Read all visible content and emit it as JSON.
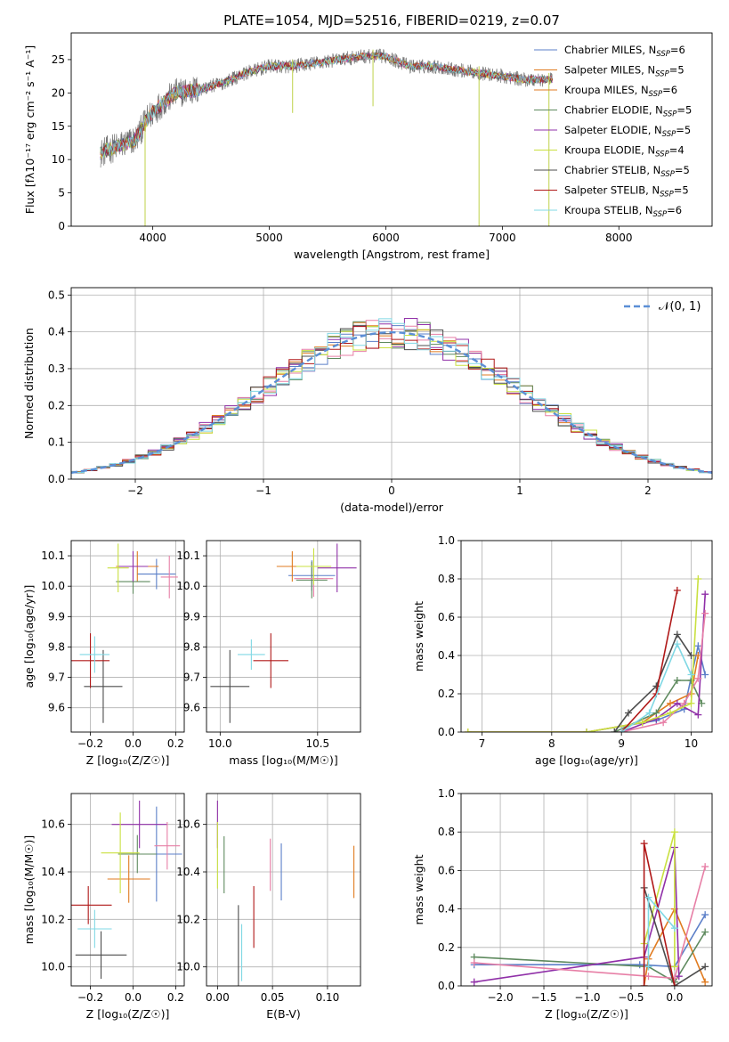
{
  "colors": {
    "series": [
      "#5b7fc8",
      "#e07b20",
      "#5e8a5e",
      "#9030a8",
      "#e77fa6",
      "#c9e040",
      "#4d4d4d",
      "#b01818",
      "#80d8e4"
    ],
    "normal_line": "#5b8fd6",
    "spectrum_grey": "#777777"
  },
  "chart_data": [
    {
      "id": "spectrum",
      "type": "line",
      "title": "PLATE=1054, MJD=52516, FIBERID=0219, z=0.07",
      "xlabel": "wavelength [Angstrom, rest frame]",
      "ylabel": "Flux [fλ10⁻¹⁷ erg cm⁻² s⁻¹ A⁻¹]",
      "xlim": [
        3300,
        8800
      ],
      "ylim": [
        0,
        29
      ],
      "xticks": [
        4000,
        5000,
        6000,
        7000,
        8000
      ],
      "yticks": [
        0,
        5,
        10,
        15,
        20,
        25
      ],
      "continuum": {
        "x": [
          3550,
          3700,
          3850,
          3950,
          4050,
          4200,
          4400,
          4600,
          4800,
          5000,
          5200,
          5400,
          5600,
          5800,
          6000,
          6200,
          6400,
          6600,
          6800,
          7000,
          7200,
          7400
        ],
        "y": [
          11,
          12,
          13,
          16,
          18,
          20,
          20.5,
          21.5,
          23,
          24,
          24,
          24.5,
          25,
          25.5,
          25.5,
          24,
          24,
          23.5,
          23,
          22.5,
          22,
          22
        ]
      },
      "absorption_lines": [
        {
          "x": 3934,
          "y": 0
        },
        {
          "x": 5890,
          "y": 18
        },
        {
          "x": 5200,
          "y": 17
        },
        {
          "x": 6800,
          "y": 0
        },
        {
          "x": 7400,
          "y": 0
        }
      ],
      "legend": [
        "Chabrier MILES, N_SSP=6",
        "Salpeter MILES, N_SSP=5",
        "Kroupa MILES, N_SSP=6",
        "Chabrier ELODIE, N_SSP=5",
        "Salpeter ELODIE, N_SSP=5",
        "Kroupa ELODIE, N_SSP=4",
        "Chabrier STELIB, N_SSP=5",
        "Salpeter STELIB, N_SSP=5",
        "Kroupa STELIB, N_SSP=6"
      ],
      "legend_colors": [
        "#5b7fc8",
        "#e07b20",
        "#e07b20",
        "#5e8a5e",
        "#9030a8",
        "#c9e040",
        "#4d4d4d",
        "#b01818",
        "#80d8e4"
      ],
      "legend_position": "top-right"
    },
    {
      "id": "residuals",
      "type": "area",
      "xlabel": "(data-model)/error",
      "ylabel": "Normed distribution",
      "xlim": [
        -2.5,
        2.5
      ],
      "ylim": [
        0,
        0.52
      ],
      "xticks": [
        -2,
        -1,
        0,
        1,
        2
      ],
      "yticks": [
        0.0,
        0.1,
        0.2,
        0.3,
        0.4,
        0.5
      ],
      "grid": true,
      "bin_width": 0.1,
      "normal_label": "𝒩(0, 1)",
      "legend_position": "top-right"
    },
    {
      "id": "age-vs-Z",
      "type": "scatter",
      "xlabel": "Z [log₁₀(Z/Z☉)]",
      "ylabel": "age  [log₁₀(age/yr)]",
      "xlim": [
        -0.29,
        0.24
      ],
      "ylim": [
        9.52,
        10.15
      ],
      "xticks": [
        -0.2,
        0.0,
        0.2
      ],
      "yticks": [
        9.6,
        9.7,
        9.8,
        9.9,
        10.0,
        10.1
      ],
      "grid": true,
      "points": [
        {
          "x": 0.11,
          "y": 10.04,
          "xerr": 0.09,
          "yerr": 0.05
        },
        {
          "x": 0.02,
          "y": 10.065,
          "xerr": 0.1,
          "yerr": 0.05
        },
        {
          "x": 0.0,
          "y": 10.015,
          "xerr": 0.08,
          "yerr": 0.04
        },
        {
          "x": 0.0,
          "y": 10.065,
          "xerr": 0.07,
          "yerr": 0.05
        },
        {
          "x": 0.17,
          "y": 10.03,
          "xerr": 0.04,
          "yerr": 0.07
        },
        {
          "x": -0.07,
          "y": 10.06,
          "xerr": 0.05,
          "yerr": 0.08
        },
        {
          "x": -0.14,
          "y": 9.67,
          "xerr": 0.09,
          "yerr": 0.12
        },
        {
          "x": -0.2,
          "y": 9.755,
          "xerr": 0.09,
          "yerr": 0.09
        },
        {
          "x": -0.18,
          "y": 9.775,
          "xerr": 0.07,
          "yerr": 0.06
        }
      ]
    },
    {
      "id": "age-vs-mass",
      "type": "scatter",
      "xlabel": "mass [log₁₀(M/M☉)]",
      "ylabel": "",
      "xlim": [
        9.93,
        10.72
      ],
      "ylim": [
        9.52,
        10.15
      ],
      "xticks": [
        10.0,
        10.5
      ],
      "yticks": [
        9.6,
        9.7,
        9.8,
        9.9,
        10.0,
        10.1
      ],
      "grid": true,
      "points": [
        {
          "x": 10.47,
          "y": 10.035,
          "xerr": 0.12,
          "yerr": 0.05
        },
        {
          "x": 10.37,
          "y": 10.065,
          "xerr": 0.08,
          "yerr": 0.05
        },
        {
          "x": 10.47,
          "y": 10.02,
          "xerr": 0.08,
          "yerr": 0.06
        },
        {
          "x": 10.6,
          "y": 10.06,
          "xerr": 0.1,
          "yerr": 0.08
        },
        {
          "x": 10.48,
          "y": 10.025,
          "xerr": 0.1,
          "yerr": 0.06
        },
        {
          "x": 10.48,
          "y": 10.065,
          "xerr": 0.09,
          "yerr": 0.06
        },
        {
          "x": 10.05,
          "y": 9.67,
          "xerr": 0.1,
          "yerr": 0.12
        },
        {
          "x": 10.26,
          "y": 9.755,
          "xerr": 0.09,
          "yerr": 0.09
        },
        {
          "x": 10.16,
          "y": 9.775,
          "xerr": 0.07,
          "yerr": 0.05
        }
      ]
    },
    {
      "id": "massweight-vs-age",
      "type": "line",
      "xlabel": "age  [log₁₀(age/yr)]",
      "ylabel": "mass weight",
      "xlim": [
        6.7,
        10.3
      ],
      "ylim": [
        0,
        1.0
      ],
      "xticks": [
        7,
        8,
        9,
        10
      ],
      "yticks": [
        0.0,
        0.2,
        0.4,
        0.6,
        0.8,
        1.0
      ],
      "grid": true,
      "series": [
        {
          "x": [
            8.5,
            9.5,
            9.9,
            10.1,
            10.2
          ],
          "y": [
            0.0,
            0.06,
            0.12,
            0.45,
            0.3
          ]
        },
        {
          "x": [
            6.8,
            8.5,
            9.3,
            9.7,
            10.0,
            10.1
          ],
          "y": [
            0.0,
            0.0,
            0.05,
            0.15,
            0.2,
            0.4
          ]
        },
        {
          "x": [
            8.9,
            9.5,
            9.8,
            10.0,
            10.15
          ],
          "y": [
            0.0,
            0.1,
            0.27,
            0.27,
            0.15
          ]
        },
        {
          "x": [
            9.0,
            9.5,
            9.8,
            10.1,
            10.2
          ],
          "y": [
            0.0,
            0.07,
            0.15,
            0.09,
            0.72
          ]
        },
        {
          "x": [
            9.0,
            9.6,
            9.9,
            10.1,
            10.2
          ],
          "y": [
            0.0,
            0.05,
            0.15,
            0.28,
            0.62
          ]
        },
        {
          "x": [
            6.8,
            8.5,
            9.3,
            9.7,
            10.0,
            10.1
          ],
          "y": [
            0.0,
            0.0,
            0.05,
            0.1,
            0.15,
            0.8
          ]
        },
        {
          "x": [
            8.9,
            9.1,
            9.5,
            9.8,
            10.0
          ],
          "y": [
            0.0,
            0.1,
            0.24,
            0.51,
            0.4
          ]
        },
        {
          "x": [
            9.0,
            9.5,
            9.8
          ],
          "y": [
            0.0,
            0.2,
            0.74
          ]
        },
        {
          "x": [
            9.0,
            9.4,
            9.8,
            10.0
          ],
          "y": [
            0.0,
            0.1,
            0.46,
            0.3
          ]
        }
      ]
    },
    {
      "id": "mass-vs-Z",
      "type": "scatter",
      "xlabel": "Z [log₁₀(Z/Z☉)]",
      "ylabel": "mass [log₁₀(M/M☉)]",
      "xlim": [
        -0.29,
        0.24
      ],
      "ylim": [
        9.92,
        10.73
      ],
      "xticks": [
        -0.2,
        0.0,
        0.2
      ],
      "yticks": [
        10.0,
        10.2,
        10.4,
        10.6
      ],
      "grid": true,
      "points": [
        {
          "x": 0.11,
          "y": 10.475,
          "xerr": 0.12,
          "yerr": 0.2
        },
        {
          "x": -0.02,
          "y": 10.37,
          "xerr": 0.1,
          "yerr": 0.1
        },
        {
          "x": 0.02,
          "y": 10.475,
          "xerr": 0.09,
          "yerr": 0.08
        },
        {
          "x": 0.03,
          "y": 10.6,
          "xerr": 0.13,
          "yerr": 0.1
        },
        {
          "x": 0.16,
          "y": 10.51,
          "xerr": 0.06,
          "yerr": 0.1
        },
        {
          "x": -0.06,
          "y": 10.48,
          "xerr": 0.09,
          "yerr": 0.17
        },
        {
          "x": -0.15,
          "y": 10.05,
          "xerr": 0.12,
          "yerr": 0.1
        },
        {
          "x": -0.21,
          "y": 10.26,
          "xerr": 0.11,
          "yerr": 0.08
        },
        {
          "x": -0.18,
          "y": 10.16,
          "xerr": 0.08,
          "yerr": 0.08
        }
      ]
    },
    {
      "id": "mass-vs-ebv",
      "type": "scatter",
      "xlabel": "E(B-V)",
      "ylabel": "",
      "xlim": [
        -0.01,
        0.13
      ],
      "ylim": [
        9.92,
        10.73
      ],
      "xticks": [
        0.0,
        0.05,
        0.1
      ],
      "yticks": [
        10.0,
        10.2,
        10.4,
        10.6
      ],
      "grid": true,
      "points": [
        {
          "x": 0.058,
          "y": 10.4,
          "xerr": 0,
          "yerr": 0.12
        },
        {
          "x": 0.124,
          "y": 10.4,
          "xerr": 0,
          "yerr": 0.11
        },
        {
          "x": 0.006,
          "y": 10.43,
          "xerr": 0,
          "yerr": 0.12
        },
        {
          "x": 0.0,
          "y": 10.6,
          "xerr": 0,
          "yerr": 0.1
        },
        {
          "x": 0.048,
          "y": 10.43,
          "xerr": 0,
          "yerr": 0.11
        },
        {
          "x": 0.0,
          "y": 10.47,
          "xerr": 0,
          "yerr": 0.14
        },
        {
          "x": 0.019,
          "y": 10.05,
          "xerr": 0,
          "yerr": 0.21
        },
        {
          "x": 0.033,
          "y": 10.21,
          "xerr": 0,
          "yerr": 0.13
        },
        {
          "x": 0.022,
          "y": 10.06,
          "xerr": 0,
          "yerr": 0.12
        }
      ]
    },
    {
      "id": "massweight-vs-Z",
      "type": "line",
      "xlabel": "Z [log₁₀(Z/Z☉)]",
      "ylabel": "mass weight",
      "xlim": [
        -2.45,
        0.43
      ],
      "ylim": [
        0,
        1.0
      ],
      "xticks": [
        -2.0,
        -1.5,
        -1.0,
        -0.5,
        0.0
      ],
      "yticks": [
        0.0,
        0.2,
        0.4,
        0.6,
        0.8,
        1.0
      ],
      "grid": true,
      "series": [
        {
          "x": [
            -2.3,
            -0.4,
            0.0,
            0.35
          ],
          "y": [
            0.11,
            0.11,
            0.1,
            0.37
          ]
        },
        {
          "x": [
            -0.35,
            -0.3,
            0.0,
            0.35
          ],
          "y": [
            0.0,
            0.14,
            0.4,
            0.02
          ]
        },
        {
          "x": [
            -2.3,
            -0.3,
            0.0,
            0.35
          ],
          "y": [
            0.15,
            0.1,
            0.02,
            0.28
          ]
        },
        {
          "x": [
            -2.3,
            -0.35,
            0.0,
            0.05
          ],
          "y": [
            0.02,
            0.15,
            0.72,
            0.05
          ]
        },
        {
          "x": [
            -2.3,
            -0.3,
            0.0,
            0.35
          ],
          "y": [
            0.12,
            0.05,
            0.04,
            0.62
          ]
        },
        {
          "x": [
            -0.35,
            0.0,
            0.0
          ],
          "y": [
            0.22,
            0.8,
            0.1
          ]
        },
        {
          "x": [
            -0.35,
            0.0,
            0.35
          ],
          "y": [
            0.51,
            0.0,
            0.1
          ]
        },
        {
          "x": [
            -0.35,
            -0.35,
            0.0
          ],
          "y": [
            0.0,
            0.74,
            0.0
          ]
        },
        {
          "x": [
            -0.3,
            -0.3,
            0.0
          ],
          "y": [
            0.1,
            0.46,
            0.3
          ]
        }
      ]
    }
  ]
}
